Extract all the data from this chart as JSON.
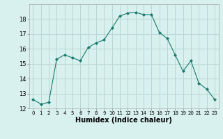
{
  "x": [
    0,
    1,
    2,
    3,
    4,
    5,
    6,
    7,
    8,
    9,
    10,
    11,
    12,
    13,
    14,
    15,
    16,
    17,
    18,
    19,
    20,
    21,
    22,
    23
  ],
  "y": [
    12.6,
    12.3,
    12.4,
    15.3,
    15.6,
    15.4,
    15.2,
    16.1,
    16.4,
    16.6,
    17.4,
    18.2,
    18.4,
    18.45,
    18.3,
    18.3,
    17.1,
    16.7,
    15.6,
    14.5,
    15.2,
    13.7,
    13.3,
    12.6
  ],
  "line_color": "#1a7a6e",
  "marker": "D",
  "marker_size": 2.0,
  "bg_color": "#d8f0ee",
  "grid_color": "#b8d8d4",
  "xlabel": "Humidex (Indice chaleur)",
  "ylim": [
    12,
    19
  ],
  "xlim": [
    -0.5,
    23.5
  ],
  "yticks": [
    12,
    13,
    14,
    15,
    16,
    17,
    18
  ],
  "xticks": [
    0,
    1,
    2,
    3,
    4,
    5,
    6,
    7,
    8,
    9,
    10,
    11,
    12,
    13,
    14,
    15,
    16,
    17,
    18,
    19,
    20,
    21,
    22,
    23
  ],
  "label_fontsize": 7,
  "tick_fontsize": 6,
  "xlabel_fontsize": 7
}
